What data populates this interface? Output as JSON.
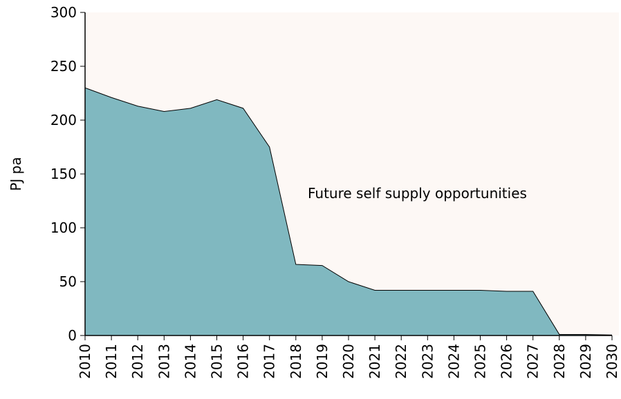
{
  "chart_data": {
    "type": "area",
    "y_label": "PJ pa",
    "annotation": "Future self supply opportunities",
    "x": [
      2010,
      2011,
      2012,
      2013,
      2014,
      2015,
      2016,
      2017,
      2018,
      2019,
      2020,
      2021,
      2022,
      2023,
      2024,
      2025,
      2026,
      2027,
      2028,
      2029,
      2030
    ],
    "values": [
      230,
      221,
      213,
      208,
      211,
      219,
      211,
      175,
      66,
      65,
      50,
      42,
      42,
      42,
      42,
      42,
      41,
      41,
      1,
      1,
      0.5
    ],
    "color": "#80b8c0",
    "background": "#fdf8f5",
    "xlim": [
      2010,
      2030
    ],
    "xticks": [
      2010,
      2011,
      2012,
      2013,
      2014,
      2015,
      2016,
      2017,
      2018,
      2019,
      2020,
      2021,
      2022,
      2023,
      2024,
      2025,
      2026,
      2027,
      2028,
      2029,
      2030
    ],
    "ylim": [
      0,
      300
    ],
    "yticks": [
      0,
      50,
      100,
      150,
      200,
      250,
      300
    ],
    "grid": false
  }
}
